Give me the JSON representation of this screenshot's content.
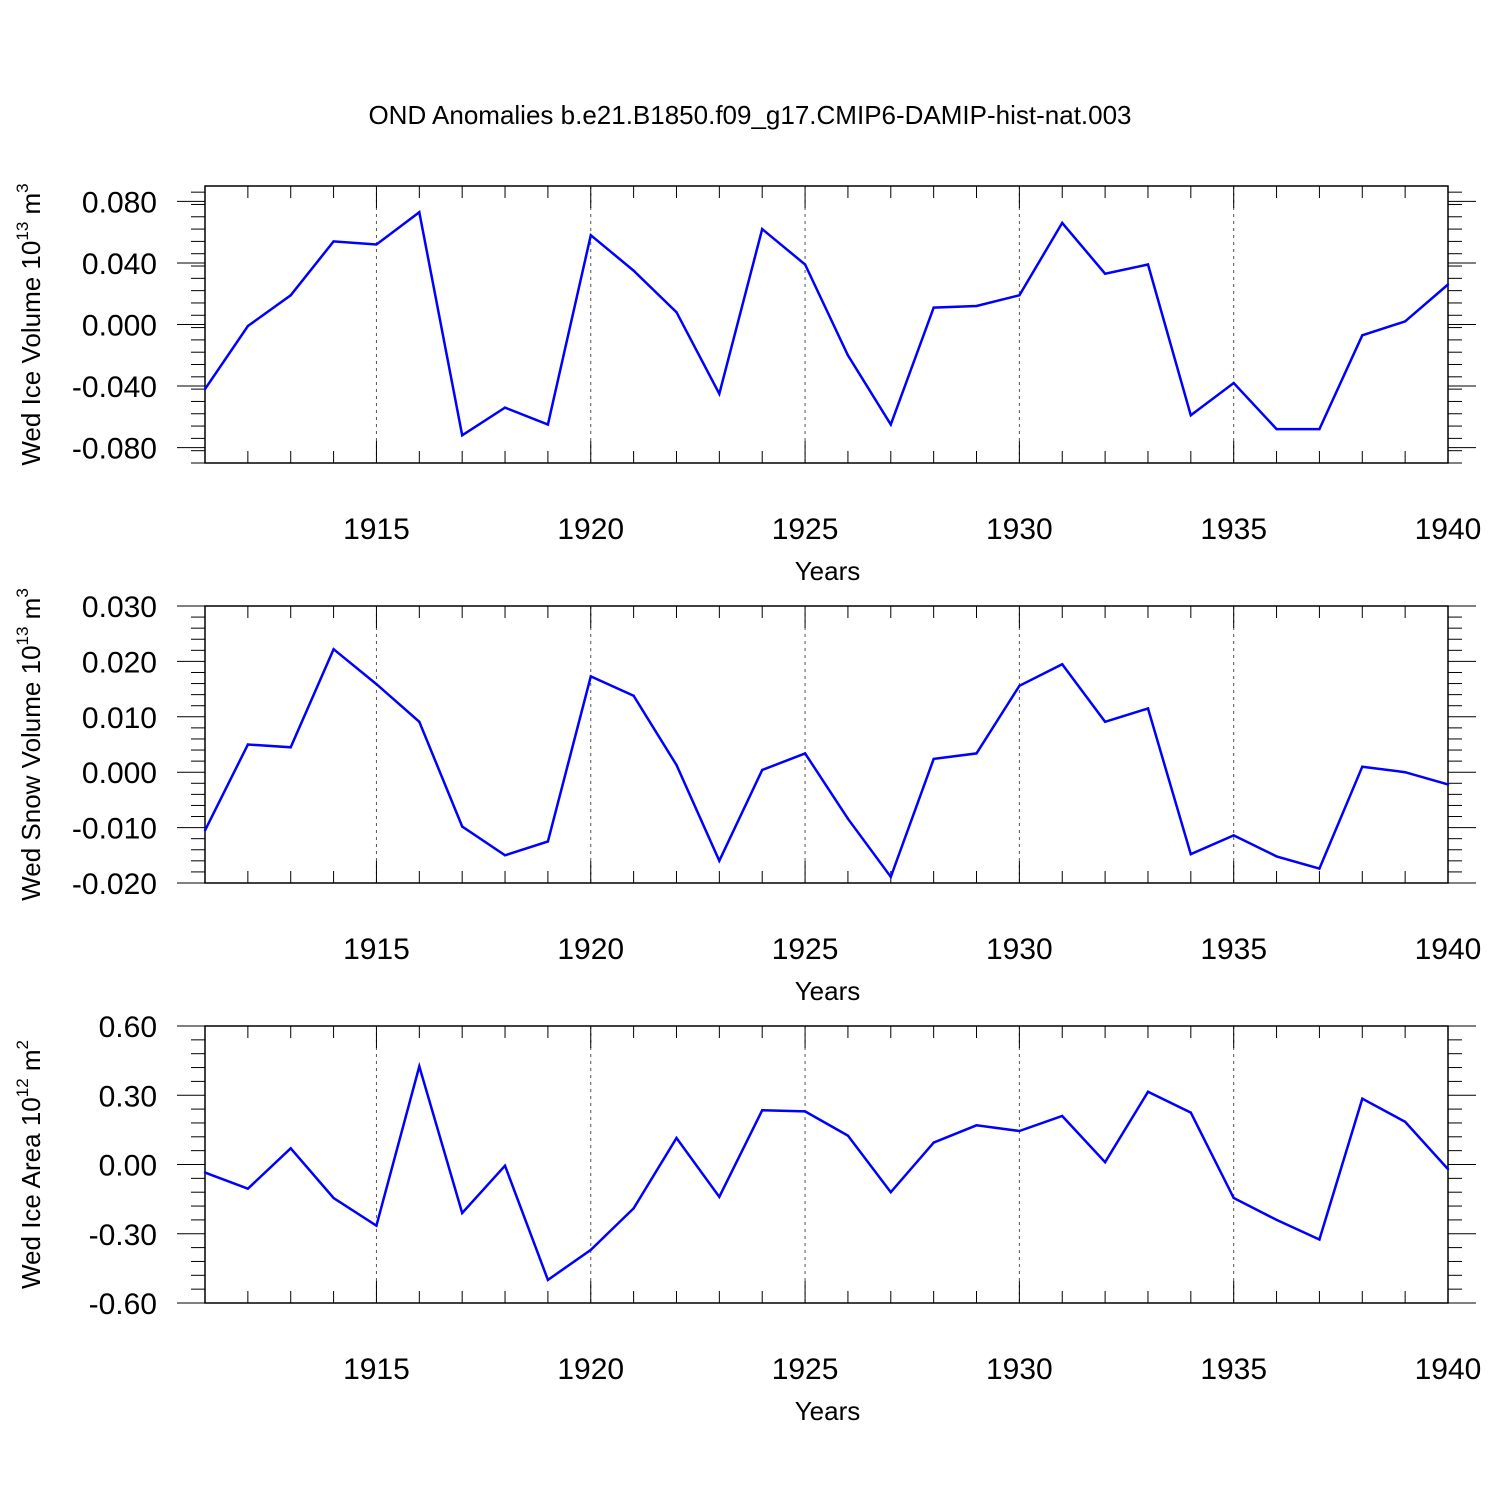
{
  "title": "OND Anomalies b.e21.B1850.f09_g17.CMIP6-DAMIP-hist-nat.003",
  "line_color": "#0000ff",
  "chart_data": [
    {
      "type": "line",
      "ylabel_main": "Wed Ice Volume 10",
      "ylabel_sup1": "13",
      "ylabel_mid": " m",
      "ylabel_sup2": "3",
      "xlabel": "Years",
      "xlim": [
        1911,
        1940
      ],
      "ylim": [
        -0.09,
        0.09
      ],
      "yticks": [
        -0.08,
        -0.04,
        0.0,
        0.04,
        0.08
      ],
      "ytick_labels": [
        "-0.080",
        "-0.040",
        "0.000",
        "0.040",
        "0.080"
      ],
      "xticks": [
        1915,
        1920,
        1925,
        1930,
        1935,
        1940
      ],
      "xtick_labels": [
        "1915",
        "1920",
        "1925",
        "1930",
        "1935",
        "1940"
      ],
      "x": [
        1911,
        1912,
        1913,
        1914,
        1915,
        1916,
        1917,
        1918,
        1919,
        1920,
        1921,
        1922,
        1923,
        1924,
        1925,
        1926,
        1927,
        1928,
        1929,
        1930,
        1931,
        1932,
        1933,
        1934,
        1935,
        1936,
        1937,
        1938,
        1939,
        1940
      ],
      "values": [
        -0.042,
        -0.001,
        0.019,
        0.054,
        0.052,
        0.073,
        -0.072,
        -0.054,
        -0.065,
        0.058,
        0.035,
        0.008,
        -0.045,
        0.062,
        0.039,
        -0.02,
        -0.065,
        0.011,
        0.012,
        0.019,
        0.066,
        0.033,
        0.039,
        -0.059,
        -0.038,
        -0.068,
        -0.068,
        -0.007,
        0.002,
        0.026
      ]
    },
    {
      "type": "line",
      "ylabel_main": "Wed Snow Volume 10",
      "ylabel_sup1": "13",
      "ylabel_mid": " m",
      "ylabel_sup2": "3",
      "xlabel": "Years",
      "xlim": [
        1911,
        1940
      ],
      "ylim": [
        -0.02,
        0.03
      ],
      "yticks": [
        -0.02,
        -0.01,
        0.0,
        0.01,
        0.02,
        0.03
      ],
      "ytick_labels": [
        "-0.020",
        "-0.010",
        "0.000",
        "0.010",
        "0.020",
        "0.030"
      ],
      "xticks": [
        1915,
        1920,
        1925,
        1930,
        1935,
        1940
      ],
      "xtick_labels": [
        "1915",
        "1920",
        "1925",
        "1930",
        "1935",
        "1940"
      ],
      "x": [
        1911,
        1912,
        1913,
        1914,
        1915,
        1916,
        1917,
        1918,
        1919,
        1920,
        1921,
        1922,
        1923,
        1924,
        1925,
        1926,
        1927,
        1928,
        1929,
        1930,
        1931,
        1932,
        1933,
        1934,
        1935,
        1936,
        1937,
        1938,
        1939,
        1940
      ],
      "values": [
        -0.0105,
        0.005,
        0.0045,
        0.0222,
        0.0159,
        0.0091,
        -0.0098,
        -0.015,
        -0.0125,
        0.0173,
        0.0138,
        0.0013,
        -0.016,
        0.0004,
        0.0034,
        -0.0084,
        -0.0189,
        0.0024,
        0.0034,
        0.0156,
        0.0195,
        0.0091,
        0.0115,
        -0.0148,
        -0.0114,
        -0.0152,
        -0.0174,
        0.001,
        0.0,
        -0.0022
      ]
    },
    {
      "type": "line",
      "ylabel_main": "Wed Ice Area 10",
      "ylabel_sup1": "12",
      "ylabel_mid": " m",
      "ylabel_sup2": "2",
      "xlabel": "Years",
      "xlim": [
        1911,
        1940
      ],
      "ylim": [
        -0.6,
        0.6
      ],
      "yticks": [
        -0.6,
        -0.3,
        0.0,
        0.3,
        0.6
      ],
      "ytick_labels": [
        "-0.60",
        "-0.30",
        "0.00",
        "0.30",
        "0.60"
      ],
      "xticks": [
        1915,
        1920,
        1925,
        1930,
        1935,
        1940
      ],
      "xtick_labels": [
        "1915",
        "1920",
        "1925",
        "1930",
        "1935",
        "1940"
      ],
      "x": [
        1911,
        1912,
        1913,
        1914,
        1915,
        1916,
        1917,
        1918,
        1919,
        1920,
        1921,
        1922,
        1923,
        1924,
        1925,
        1926,
        1927,
        1928,
        1929,
        1930,
        1931,
        1932,
        1933,
        1934,
        1935,
        1936,
        1937,
        1938,
        1939,
        1940
      ],
      "values": [
        -0.035,
        -0.105,
        0.07,
        -0.145,
        -0.265,
        0.425,
        -0.21,
        -0.005,
        -0.5,
        -0.37,
        -0.19,
        0.115,
        -0.14,
        0.235,
        0.23,
        0.125,
        -0.12,
        0.095,
        0.17,
        0.145,
        0.21,
        0.01,
        0.315,
        0.225,
        -0.145,
        -0.24,
        -0.325,
        0.285,
        0.185,
        -0.02
      ]
    }
  ]
}
